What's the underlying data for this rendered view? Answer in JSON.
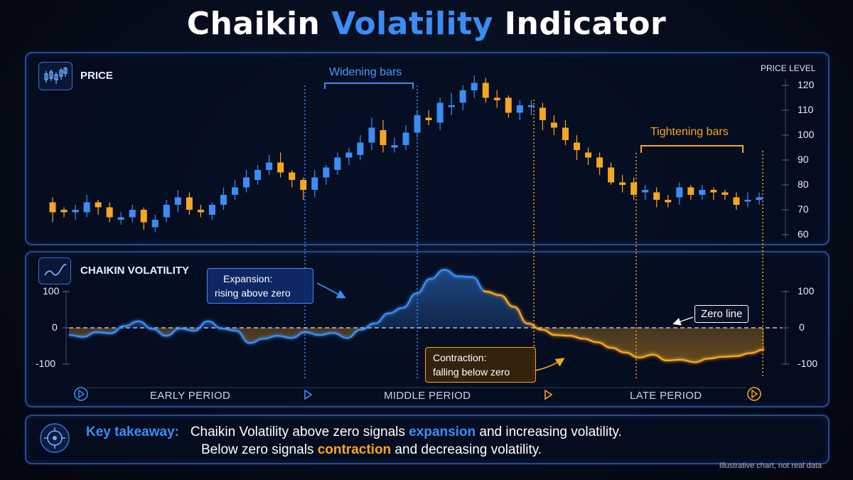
{
  "title": {
    "part1": "Chaikin",
    "part2": "Volatility",
    "part3": "Indicator"
  },
  "price_panel": {
    "label": "PRICE",
    "axis_title": "PRICE LEVEL",
    "icon": "candlestick-icon"
  },
  "vol_panel": {
    "label": "CHAIKIN VOLATILITY",
    "icon": "line-chart-icon"
  },
  "periods": [
    "EARLY PERIOD",
    "MIDDLE PERIOD",
    "LATE PERIOD"
  ],
  "annotations": {
    "widening": "Widening bars",
    "tightening": "Tightening bars",
    "expansion_line1": "Expansion:",
    "expansion_line2": "rising above zero",
    "contraction_line1": "Contraction:",
    "contraction_line2": "falling below zero",
    "zero_line": "Zero line"
  },
  "takeaway": {
    "label": "Key takeaway:",
    "line1_a": "Chaikin Volatility above zero signals ",
    "line1_b": "expansion",
    "line1_c": " and increasing volatility.",
    "line2_a": "Below zero signals ",
    "line2_b": "contraction",
    "line2_c": " and decreasing volatility.",
    "icon": "target-icon"
  },
  "footnote": "Illustrative chart, not real data",
  "colors": {
    "up": "#3b8df5",
    "down": "#f5a623",
    "accent": "#3b8df5",
    "panel_border": "#2a4a86"
  },
  "chart_data": [
    {
      "type": "candlestick",
      "ylabel": "PRICE LEVEL",
      "ylim": [
        60,
        125
      ],
      "yticks": [
        60,
        70,
        80,
        90,
        100,
        110,
        120
      ],
      "candles": [
        {
          "o": 73,
          "c": 69,
          "h": 75,
          "l": 65
        },
        {
          "o": 70,
          "c": 69,
          "h": 71,
          "l": 67
        },
        {
          "o": 69,
          "c": 70,
          "h": 72,
          "l": 66
        },
        {
          "o": 69,
          "c": 73,
          "h": 76,
          "l": 67
        },
        {
          "o": 73,
          "c": 71,
          "h": 74,
          "l": 68
        },
        {
          "o": 71,
          "c": 67,
          "h": 73,
          "l": 65
        },
        {
          "o": 66,
          "c": 67,
          "h": 69,
          "l": 64
        },
        {
          "o": 67,
          "c": 70,
          "h": 72,
          "l": 65
        },
        {
          "o": 70,
          "c": 65,
          "h": 71,
          "l": 62
        },
        {
          "o": 63,
          "c": 66,
          "h": 68,
          "l": 61
        },
        {
          "o": 67,
          "c": 72,
          "h": 74,
          "l": 65
        },
        {
          "o": 72,
          "c": 75,
          "h": 78,
          "l": 69
        },
        {
          "o": 75,
          "c": 70,
          "h": 77,
          "l": 68
        },
        {
          "o": 70,
          "c": 69,
          "h": 72,
          "l": 67
        },
        {
          "o": 68,
          "c": 72,
          "h": 73,
          "l": 66
        },
        {
          "o": 72,
          "c": 76,
          "h": 79,
          "l": 70
        },
        {
          "o": 76,
          "c": 79,
          "h": 82,
          "l": 74
        },
        {
          "o": 79,
          "c": 83,
          "h": 86,
          "l": 77
        },
        {
          "o": 82,
          "c": 86,
          "h": 88,
          "l": 80
        },
        {
          "o": 86,
          "c": 89,
          "h": 92,
          "l": 84
        },
        {
          "o": 89,
          "c": 85,
          "h": 93,
          "l": 83
        },
        {
          "o": 85,
          "c": 82,
          "h": 86,
          "l": 79
        },
        {
          "o": 82,
          "c": 78,
          "h": 83,
          "l": 74
        },
        {
          "o": 78,
          "c": 83,
          "h": 86,
          "l": 75
        },
        {
          "o": 83,
          "c": 87,
          "h": 88,
          "l": 80
        },
        {
          "o": 86,
          "c": 91,
          "h": 93,
          "l": 84
        },
        {
          "o": 91,
          "c": 93,
          "h": 95,
          "l": 88
        },
        {
          "o": 92,
          "c": 97,
          "h": 100,
          "l": 90
        },
        {
          "o": 97,
          "c": 103,
          "h": 107,
          "l": 94
        },
        {
          "o": 102,
          "c": 96,
          "h": 106,
          "l": 93
        },
        {
          "o": 95,
          "c": 96,
          "h": 99,
          "l": 93
        },
        {
          "o": 96,
          "c": 101,
          "h": 104,
          "l": 94
        },
        {
          "o": 101,
          "c": 108,
          "h": 110,
          "l": 99
        },
        {
          "o": 107,
          "c": 106,
          "h": 110,
          "l": 104
        },
        {
          "o": 105,
          "c": 113,
          "h": 115,
          "l": 102
        },
        {
          "o": 112,
          "c": 112,
          "h": 117,
          "l": 108
        },
        {
          "o": 113,
          "c": 118,
          "h": 120,
          "l": 110
        },
        {
          "o": 118,
          "c": 121,
          "h": 124,
          "l": 115
        },
        {
          "o": 121,
          "c": 115,
          "h": 123,
          "l": 113
        },
        {
          "o": 115,
          "c": 114,
          "h": 118,
          "l": 111
        },
        {
          "o": 115,
          "c": 109,
          "h": 116,
          "l": 107
        },
        {
          "o": 109,
          "c": 112,
          "h": 114,
          "l": 106
        },
        {
          "o": 112,
          "c": 112,
          "h": 114,
          "l": 108
        },
        {
          "o": 111,
          "c": 106,
          "h": 113,
          "l": 102
        },
        {
          "o": 105,
          "c": 103,
          "h": 108,
          "l": 100
        },
        {
          "o": 103,
          "c": 98,
          "h": 106,
          "l": 96
        },
        {
          "o": 97,
          "c": 94,
          "h": 100,
          "l": 90
        },
        {
          "o": 93,
          "c": 91,
          "h": 95,
          "l": 88
        },
        {
          "o": 91,
          "c": 87,
          "h": 93,
          "l": 84
        },
        {
          "o": 87,
          "c": 81,
          "h": 89,
          "l": 80
        },
        {
          "o": 81,
          "c": 80,
          "h": 84,
          "l": 77
        },
        {
          "o": 81,
          "c": 76,
          "h": 83,
          "l": 74
        },
        {
          "o": 77,
          "c": 78,
          "h": 80,
          "l": 74
        },
        {
          "o": 77,
          "c": 74,
          "h": 79,
          "l": 71
        },
        {
          "o": 74,
          "c": 73,
          "h": 76,
          "l": 71
        },
        {
          "o": 75,
          "c": 79,
          "h": 81,
          "l": 72
        },
        {
          "o": 79,
          "c": 76,
          "h": 80,
          "l": 74
        },
        {
          "o": 76,
          "c": 78,
          "h": 80,
          "l": 74
        },
        {
          "o": 78,
          "c": 77,
          "h": 79,
          "l": 74
        },
        {
          "o": 77,
          "c": 76,
          "h": 78,
          "l": 74
        },
        {
          "o": 75,
          "c": 72,
          "h": 77,
          "l": 70
        },
        {
          "o": 74,
          "c": 74,
          "h": 77,
          "l": 71
        },
        {
          "o": 74,
          "c": 75,
          "h": 77,
          "l": 72
        }
      ]
    },
    {
      "type": "line",
      "ylabel": "",
      "ylim": [
        -125,
        125
      ],
      "yticks": [
        -100,
        0,
        100
      ],
      "x": [
        0,
        2,
        4,
        6,
        8,
        10,
        12,
        14,
        16,
        18,
        20,
        22,
        24,
        26,
        28,
        30,
        32,
        34,
        36,
        38,
        40,
        42,
        44,
        46,
        48,
        50,
        52,
        54,
        56,
        58,
        60,
        62,
        64,
        66,
        68,
        70,
        72,
        74,
        76,
        78,
        80,
        82,
        84,
        86,
        88,
        90,
        92,
        94,
        96,
        98,
        100
      ],
      "values": [
        -20,
        -25,
        -12,
        -15,
        5,
        18,
        -3,
        -22,
        -2,
        -8,
        18,
        -2,
        -8,
        -42,
        -30,
        -22,
        -28,
        -12,
        -20,
        -14,
        -28,
        -5,
        12,
        40,
        55,
        95,
        135,
        160,
        142,
        140,
        100,
        90,
        58,
        12,
        -5,
        -20,
        -22,
        -30,
        -40,
        -55,
        -68,
        -82,
        -74,
        -90,
        -88,
        -95,
        -85,
        -80,
        -78,
        -70,
        -60
      ],
      "fill_above_zero": "#3b8df5",
      "fill_below_zero": "#f5a623"
    }
  ]
}
